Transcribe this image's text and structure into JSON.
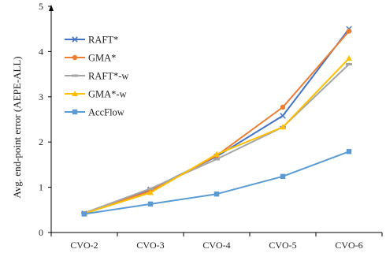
{
  "chart_data": {
    "type": "line",
    "title": "",
    "xlabel": "",
    "ylabel": "Avg. end-point error (AEPE-ALL)",
    "categories": [
      "CVO-2",
      "CVO-3",
      "CVO-4",
      "CVO-5",
      "CVO-6"
    ],
    "ylim": [
      0,
      5
    ],
    "yticks": [
      0,
      1,
      2,
      3,
      4,
      5
    ],
    "grid": false,
    "legend_position": "top-left",
    "series": [
      {
        "name": "RAFT*",
        "color": "#4472C4",
        "marker": "x",
        "values": [
          0.42,
          0.95,
          1.68,
          2.58,
          4.5
        ]
      },
      {
        "name": "GMA*",
        "color": "#ED7D31",
        "marker": "circle",
        "values": [
          0.42,
          0.92,
          1.7,
          2.77,
          4.45
        ]
      },
      {
        "name": "RAFT*-w",
        "color": "#A5A5A5",
        "marker": "dash",
        "values": [
          0.43,
          0.97,
          1.62,
          2.33,
          3.72
        ]
      },
      {
        "name": "GMA*-w",
        "color": "#FFC000",
        "marker": "triangle",
        "values": [
          0.42,
          0.88,
          1.73,
          2.33,
          3.85
        ]
      },
      {
        "name": "AccFlow",
        "color": "#5B9BD5",
        "marker": "square",
        "values": [
          0.41,
          0.63,
          0.85,
          1.24,
          1.79
        ]
      }
    ]
  }
}
